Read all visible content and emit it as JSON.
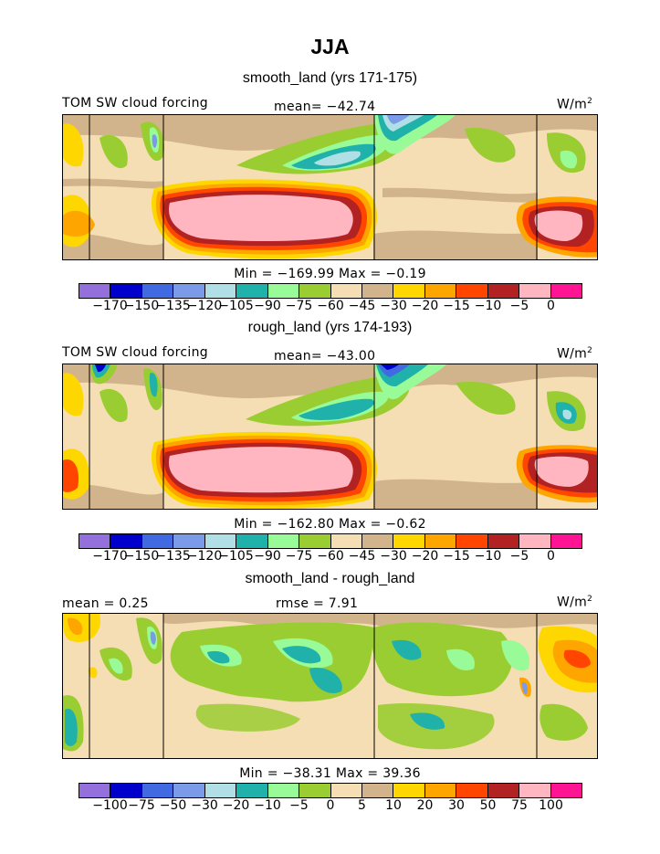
{
  "title": "JJA",
  "panels": [
    {
      "subtitle": "smooth_land (yrs 171-175)",
      "left_label": "TOM SW cloud forcing",
      "center_label": "mean= −42.74",
      "units": "W/m",
      "units_sup": "2",
      "minmax": "Min = −169.99 Max =  −0.19",
      "colorbar_labels": [
        "−170",
        "−150",
        "−135",
        "−120",
        "−105",
        "−90",
        "−75",
        "−60",
        "−45",
        "−30",
        "−20",
        "−15",
        "−10",
        "−5",
        "0"
      ],
      "colorbar_colors": [
        "#9370DB",
        "#0000CD",
        "#4169E1",
        "#7B9BE8",
        "#B0E0E6",
        "#20B2AA",
        "#98FB98",
        "#9ACD32",
        "#F5DEB3",
        "#D2B48C",
        "#FFD700",
        "#FFA500",
        "#FF4500",
        "#B22222",
        "#FFB6C1",
        "#FF1493"
      ]
    },
    {
      "subtitle": "rough_land (yrs 174-193)",
      "left_label": "TOM SW cloud forcing",
      "center_label": "mean= −43.00",
      "units": "W/m",
      "units_sup": "2",
      "minmax": "Min = −162.80 Max =  −0.62",
      "colorbar_labels": [
        "−170",
        "−150",
        "−135",
        "−120",
        "−105",
        "−90",
        "−75",
        "−60",
        "−45",
        "−30",
        "−20",
        "−15",
        "−10",
        "−5",
        "0"
      ],
      "colorbar_colors": [
        "#9370DB",
        "#0000CD",
        "#4169E1",
        "#7B9BE8",
        "#B0E0E6",
        "#20B2AA",
        "#98FB98",
        "#9ACD32",
        "#F5DEB3",
        "#D2B48C",
        "#FFD700",
        "#FFA500",
        "#FF4500",
        "#B22222",
        "#FFB6C1",
        "#FF1493"
      ]
    },
    {
      "subtitle": "smooth_land - rough_land",
      "left_label": "mean =    0.25",
      "center_label": "rmse =    7.91",
      "units": "W/m",
      "units_sup": "2",
      "minmax": "Min = −38.31 Max =  39.36",
      "colorbar_labels": [
        "−100",
        "−75",
        "−50",
        "−30",
        "−20",
        "−10",
        "−5",
        "0",
        "5",
        "10",
        "20",
        "30",
        "50",
        "75",
        "100"
      ],
      "colorbar_colors": [
        "#9370DB",
        "#0000CD",
        "#4169E1",
        "#7B9BE8",
        "#B0E0E6",
        "#20B2AA",
        "#98FB98",
        "#9ACD32",
        "#F5DEB3",
        "#D2B48C",
        "#FFD700",
        "#FFA500",
        "#FF4500",
        "#B22222",
        "#FFB6C1",
        "#FF1493"
      ]
    }
  ],
  "chart_data": [
    {
      "type": "heatmap",
      "title": "smooth_land (yrs 171-175)",
      "field": "TOM SW cloud forcing",
      "units": "W/m2",
      "mean": -42.74,
      "min": -169.99,
      "max": -0.19,
      "levels": [
        -170,
        -150,
        -135,
        -120,
        -105,
        -90,
        -75,
        -60,
        -45,
        -30,
        -20,
        -15,
        -10,
        -5,
        0
      ]
    },
    {
      "type": "heatmap",
      "title": "rough_land (yrs 174-193)",
      "field": "TOM SW cloud forcing",
      "units": "W/m2",
      "mean": -43.0,
      "min": -162.8,
      "max": -0.62,
      "levels": [
        -170,
        -150,
        -135,
        -120,
        -105,
        -90,
        -75,
        -60,
        -45,
        -30,
        -20,
        -15,
        -10,
        -5,
        0
      ]
    },
    {
      "type": "heatmap",
      "title": "smooth_land - rough_land",
      "units": "W/m2",
      "mean": 0.25,
      "rmse": 7.91,
      "min": -38.31,
      "max": 39.36,
      "levels": [
        -100,
        -75,
        -50,
        -30,
        -20,
        -10,
        -5,
        0,
        5,
        10,
        20,
        30,
        50,
        75,
        100
      ]
    }
  ]
}
